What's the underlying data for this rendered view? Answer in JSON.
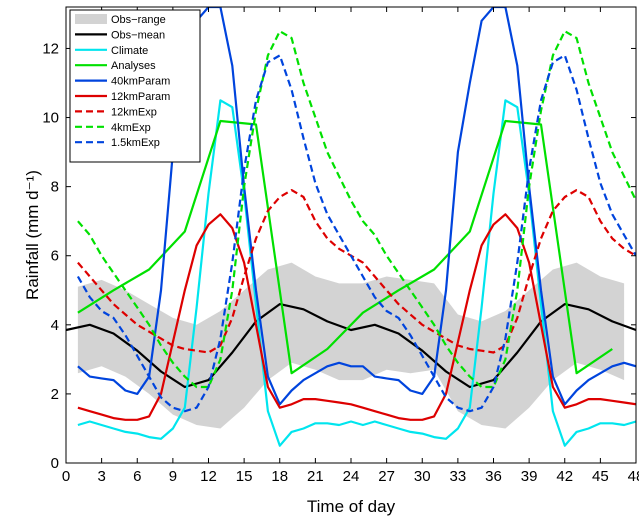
{
  "chart_data": {
    "type": "line",
    "xlabel": "Time of day",
    "ylabel": "Rainfall (mm d⁻¹)",
    "xlim": [
      0,
      48
    ],
    "ylim": [
      0,
      13.2
    ],
    "xticks": [
      0,
      3,
      6,
      9,
      12,
      15,
      18,
      21,
      24,
      27,
      30,
      33,
      36,
      39,
      42,
      45,
      48
    ],
    "yticks": [
      0,
      2,
      4,
      6,
      8,
      10,
      12
    ],
    "grid": false,
    "legend_position": "top-left",
    "range": {
      "name": "Obs−range",
      "color": "#d3d3d3",
      "x": [
        1,
        3,
        5,
        7,
        9,
        11,
        13,
        15,
        17,
        19,
        21,
        23,
        25,
        27,
        29,
        31,
        33,
        35,
        37,
        39,
        41,
        43,
        45,
        47
      ],
      "lower": [
        2.6,
        2.8,
        2.5,
        2.0,
        1.4,
        1.1,
        1.0,
        1.6,
        2.4,
        2.9,
        2.7,
        2.4,
        2.4,
        2.7,
        2.6,
        2.7,
        1.5,
        1.1,
        1.0,
        1.6,
        2.4,
        2.9,
        2.7,
        2.4
      ],
      "upper": [
        5.1,
        5.3,
        5.0,
        4.6,
        4.2,
        4.0,
        4.4,
        5.0,
        5.6,
        5.8,
        5.4,
        5.2,
        5.2,
        5.4,
        5.3,
        5.2,
        4.3,
        4.1,
        4.4,
        5.0,
        5.6,
        5.8,
        5.4,
        5.2
      ]
    },
    "series": [
      {
        "name": "Obs−mean",
        "color": "#000000",
        "dash": "solid",
        "x": [
          0,
          2,
          4,
          6,
          8,
          10,
          12,
          14,
          16,
          18,
          20,
          22,
          24,
          26,
          28,
          30,
          32,
          34,
          36,
          38,
          40,
          42,
          44,
          46,
          48
        ],
        "values": [
          3.85,
          4.0,
          3.75,
          3.25,
          2.65,
          2.2,
          2.4,
          3.2,
          4.1,
          4.6,
          4.45,
          4.1,
          3.85,
          4.0,
          3.75,
          3.25,
          2.65,
          2.2,
          2.4,
          3.2,
          4.1,
          4.6,
          4.45,
          4.1,
          3.85
        ]
      },
      {
        "name": "Climate",
        "color": "#00e5ee",
        "dash": "solid",
        "x": [
          1,
          2,
          3,
          4,
          5,
          6,
          7,
          8,
          9,
          10,
          11,
          12,
          13,
          14,
          15,
          16,
          17,
          18,
          19,
          20,
          21,
          22,
          23,
          24,
          25,
          26,
          27,
          28,
          29,
          30,
          31,
          32,
          33,
          34,
          35,
          36,
          37,
          38,
          39,
          40,
          41,
          42,
          43,
          44,
          45,
          46,
          47,
          48
        ],
        "values": [
          1.1,
          1.2,
          1.1,
          1.0,
          0.9,
          0.85,
          0.75,
          0.7,
          1.0,
          1.6,
          4.5,
          7.8,
          10.5,
          10.3,
          7.8,
          4.6,
          1.5,
          0.5,
          0.9,
          1.0,
          1.15,
          1.15,
          1.1,
          1.2,
          1.1,
          1.2,
          1.1,
          1.0,
          0.9,
          0.85,
          0.75,
          0.7,
          1.0,
          1.6,
          4.5,
          7.8,
          10.5,
          10.3,
          7.8,
          4.6,
          1.5,
          0.5,
          0.9,
          1.0,
          1.15,
          1.15,
          1.1,
          1.2
        ]
      },
      {
        "name": "Analyses",
        "color": "#00e000",
        "dash": "solid",
        "x": [
          1,
          4,
          7,
          10,
          13,
          16,
          19,
          22,
          25,
          28,
          31,
          34,
          37,
          40,
          43,
          46
        ],
        "values": [
          4.35,
          5.0,
          5.6,
          6.7,
          9.9,
          9.8,
          2.6,
          3.3,
          4.35,
          5.0,
          5.6,
          6.7,
          9.9,
          9.8,
          2.6,
          3.3
        ]
      },
      {
        "name": "40kmParam",
        "color": "#0044dd",
        "dash": "solid",
        "x": [
          1,
          2,
          3,
          4,
          5,
          6,
          7,
          8,
          9,
          10,
          11,
          12,
          13,
          14,
          15,
          16,
          17,
          18,
          19,
          20,
          21,
          22,
          23,
          24,
          25,
          26,
          27,
          28,
          29,
          30,
          31,
          32,
          33,
          34,
          35,
          36,
          37,
          38,
          39,
          40,
          41,
          42,
          43,
          44,
          45,
          46,
          47,
          48
        ],
        "values": [
          2.8,
          2.5,
          2.45,
          2.4,
          2.1,
          2.0,
          2.5,
          5.0,
          9.0,
          11.0,
          12.8,
          13.2,
          13.2,
          11.5,
          8.0,
          5.0,
          2.5,
          1.7,
          2.1,
          2.4,
          2.6,
          2.8,
          2.9,
          2.8,
          2.8,
          2.5,
          2.45,
          2.4,
          2.1,
          2.0,
          2.5,
          5.0,
          9.0,
          11.0,
          12.8,
          13.2,
          13.2,
          11.5,
          8.0,
          5.0,
          2.5,
          1.7,
          2.1,
          2.4,
          2.6,
          2.8,
          2.9,
          2.8
        ]
      },
      {
        "name": "12kmParam",
        "color": "#dd0000",
        "dash": "solid",
        "x": [
          1,
          2,
          3,
          4,
          5,
          6,
          7,
          8,
          9,
          10,
          11,
          12,
          13,
          14,
          15,
          16,
          17,
          18,
          19,
          20,
          21,
          22,
          23,
          24,
          25,
          26,
          27,
          28,
          29,
          30,
          31,
          32,
          33,
          34,
          35,
          36,
          37,
          38,
          39,
          40,
          41,
          42,
          43,
          44,
          45,
          46,
          47,
          48
        ],
        "values": [
          1.6,
          1.5,
          1.4,
          1.3,
          1.25,
          1.25,
          1.35,
          2.0,
          3.5,
          5.0,
          6.3,
          6.9,
          7.2,
          6.8,
          5.8,
          4.0,
          2.2,
          1.6,
          1.7,
          1.85,
          1.85,
          1.8,
          1.75,
          1.7,
          1.6,
          1.5,
          1.4,
          1.3,
          1.25,
          1.25,
          1.35,
          2.0,
          3.5,
          5.0,
          6.3,
          6.9,
          7.2,
          6.8,
          5.8,
          4.0,
          2.2,
          1.6,
          1.7,
          1.85,
          1.85,
          1.8,
          1.75,
          1.7
        ]
      },
      {
        "name": "12kmExp",
        "color": "#dd0000",
        "dash": "dashed",
        "x": [
          1,
          2,
          3,
          4,
          5,
          6,
          7,
          8,
          9,
          10,
          11,
          12,
          13,
          14,
          15,
          16,
          17,
          18,
          19,
          20,
          21,
          22,
          23,
          24,
          25,
          26,
          27,
          28,
          29,
          30,
          31,
          32,
          33,
          34,
          35,
          36,
          37,
          38,
          39,
          40,
          41,
          42,
          43,
          44,
          45,
          46,
          47,
          48
        ],
        "values": [
          5.8,
          5.4,
          5.0,
          4.6,
          4.3,
          4.0,
          3.8,
          3.6,
          3.4,
          3.3,
          3.25,
          3.2,
          3.4,
          4.2,
          5.4,
          6.5,
          7.3,
          7.7,
          7.9,
          7.7,
          7.0,
          6.5,
          6.2,
          6.0,
          5.8,
          5.4,
          5.0,
          4.6,
          4.3,
          4.0,
          3.8,
          3.6,
          3.4,
          3.3,
          3.25,
          3.2,
          3.4,
          4.2,
          5.4,
          6.5,
          7.3,
          7.7,
          7.9,
          7.7,
          7.0,
          6.5,
          6.2,
          6.0
        ]
      },
      {
        "name": "4kmExp",
        "color": "#00e000",
        "dash": "dashed",
        "x": [
          1,
          2,
          3,
          4,
          5,
          6,
          7,
          8,
          9,
          10,
          11,
          12,
          13,
          14,
          15,
          16,
          17,
          18,
          19,
          20,
          21,
          22,
          23,
          24,
          25,
          26,
          27,
          28,
          29,
          30,
          31,
          32,
          33,
          34,
          35,
          36,
          37,
          38,
          39,
          40,
          41,
          42,
          43,
          44,
          45,
          46,
          47,
          48
        ],
        "values": [
          7.0,
          6.6,
          6.0,
          5.5,
          5.0,
          4.5,
          4.0,
          3.4,
          2.9,
          2.5,
          2.2,
          2.2,
          3.0,
          5.0,
          8.0,
          10.2,
          11.8,
          12.5,
          12.3,
          11.0,
          10.0,
          9.0,
          8.3,
          7.6,
          7.0,
          6.6,
          6.0,
          5.5,
          5.0,
          4.5,
          4.0,
          3.4,
          2.9,
          2.5,
          2.2,
          2.2,
          3.0,
          5.0,
          8.0,
          10.2,
          11.8,
          12.5,
          12.3,
          11.0,
          10.0,
          9.0,
          8.3,
          7.6
        ]
      },
      {
        "name": "1.5kmExp",
        "color": "#0044dd",
        "dash": "dashed",
        "x": [
          1,
          2,
          3,
          4,
          5,
          6,
          7,
          8,
          9,
          10,
          11,
          12,
          13,
          14,
          15,
          16,
          17,
          18,
          19,
          20,
          21,
          22,
          23,
          24,
          25,
          26,
          27,
          28,
          29,
          30,
          31,
          32,
          33,
          34,
          35,
          36,
          37,
          38,
          39,
          40,
          41,
          42,
          43,
          44,
          45,
          46,
          47,
          48
        ],
        "values": [
          5.4,
          4.8,
          4.4,
          4.2,
          3.7,
          3.1,
          2.5,
          1.9,
          1.6,
          1.5,
          1.6,
          2.2,
          3.6,
          5.8,
          8.5,
          10.5,
          11.6,
          11.8,
          10.8,
          9.4,
          8.1,
          7.2,
          6.6,
          6.0,
          5.4,
          4.8,
          4.4,
          4.2,
          3.7,
          3.1,
          2.5,
          1.9,
          1.6,
          1.5,
          1.6,
          2.2,
          3.6,
          5.8,
          8.5,
          10.5,
          11.6,
          11.8,
          10.8,
          9.4,
          8.1,
          7.2,
          6.6,
          6.0
        ]
      }
    ]
  }
}
